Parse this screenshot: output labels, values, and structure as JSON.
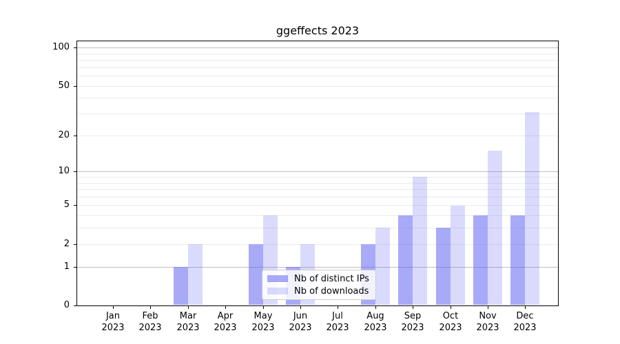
{
  "chart_data": {
    "type": "bar",
    "title": "ggeffects 2023",
    "categories": [
      "Jan 2023",
      "Feb 2023",
      "Mar 2023",
      "Apr 2023",
      "May 2023",
      "Jun 2023",
      "Jul 2023",
      "Aug 2023",
      "Sep 2023",
      "Oct 2023",
      "Nov 2023",
      "Dec 2023"
    ],
    "series": [
      {
        "name": "Nb of distinct IPs",
        "values": [
          0,
          0,
          1,
          0,
          2,
          1,
          0,
          2,
          4,
          3,
          4,
          4
        ],
        "color": "rgba(97,100,242,0.55)",
        "color_on_white": "#a8aaf5"
      },
      {
        "name": "Nb of downloads",
        "values": [
          0,
          0,
          2,
          0,
          4,
          2,
          0,
          3,
          9,
          5,
          15,
          31
        ],
        "color": "rgba(97,100,242,0.23)",
        "color_on_white": "#dbdcfa"
      }
    ],
    "xlabel": "",
    "ylabel": "",
    "y_axis": {
      "scale": "log10(value+1)",
      "ticks": [
        0,
        1,
        2,
        5,
        10,
        20,
        50,
        100
      ],
      "minor_gridlines": [
        2,
        3,
        4,
        5,
        6,
        7,
        8,
        9,
        20,
        30,
        40,
        50,
        60,
        70,
        80,
        90
      ],
      "major_gridlines": [
        1,
        10,
        100
      ],
      "ylim": [
        0,
        113
      ]
    },
    "grid": true,
    "legend_position": "lower center",
    "colors": {
      "minor_gridline": "#ebebeb",
      "major_gridline": "#bdbdbd",
      "axis": "#000000",
      "background": "#ffffff",
      "legend_border": "#cccccc"
    }
  }
}
